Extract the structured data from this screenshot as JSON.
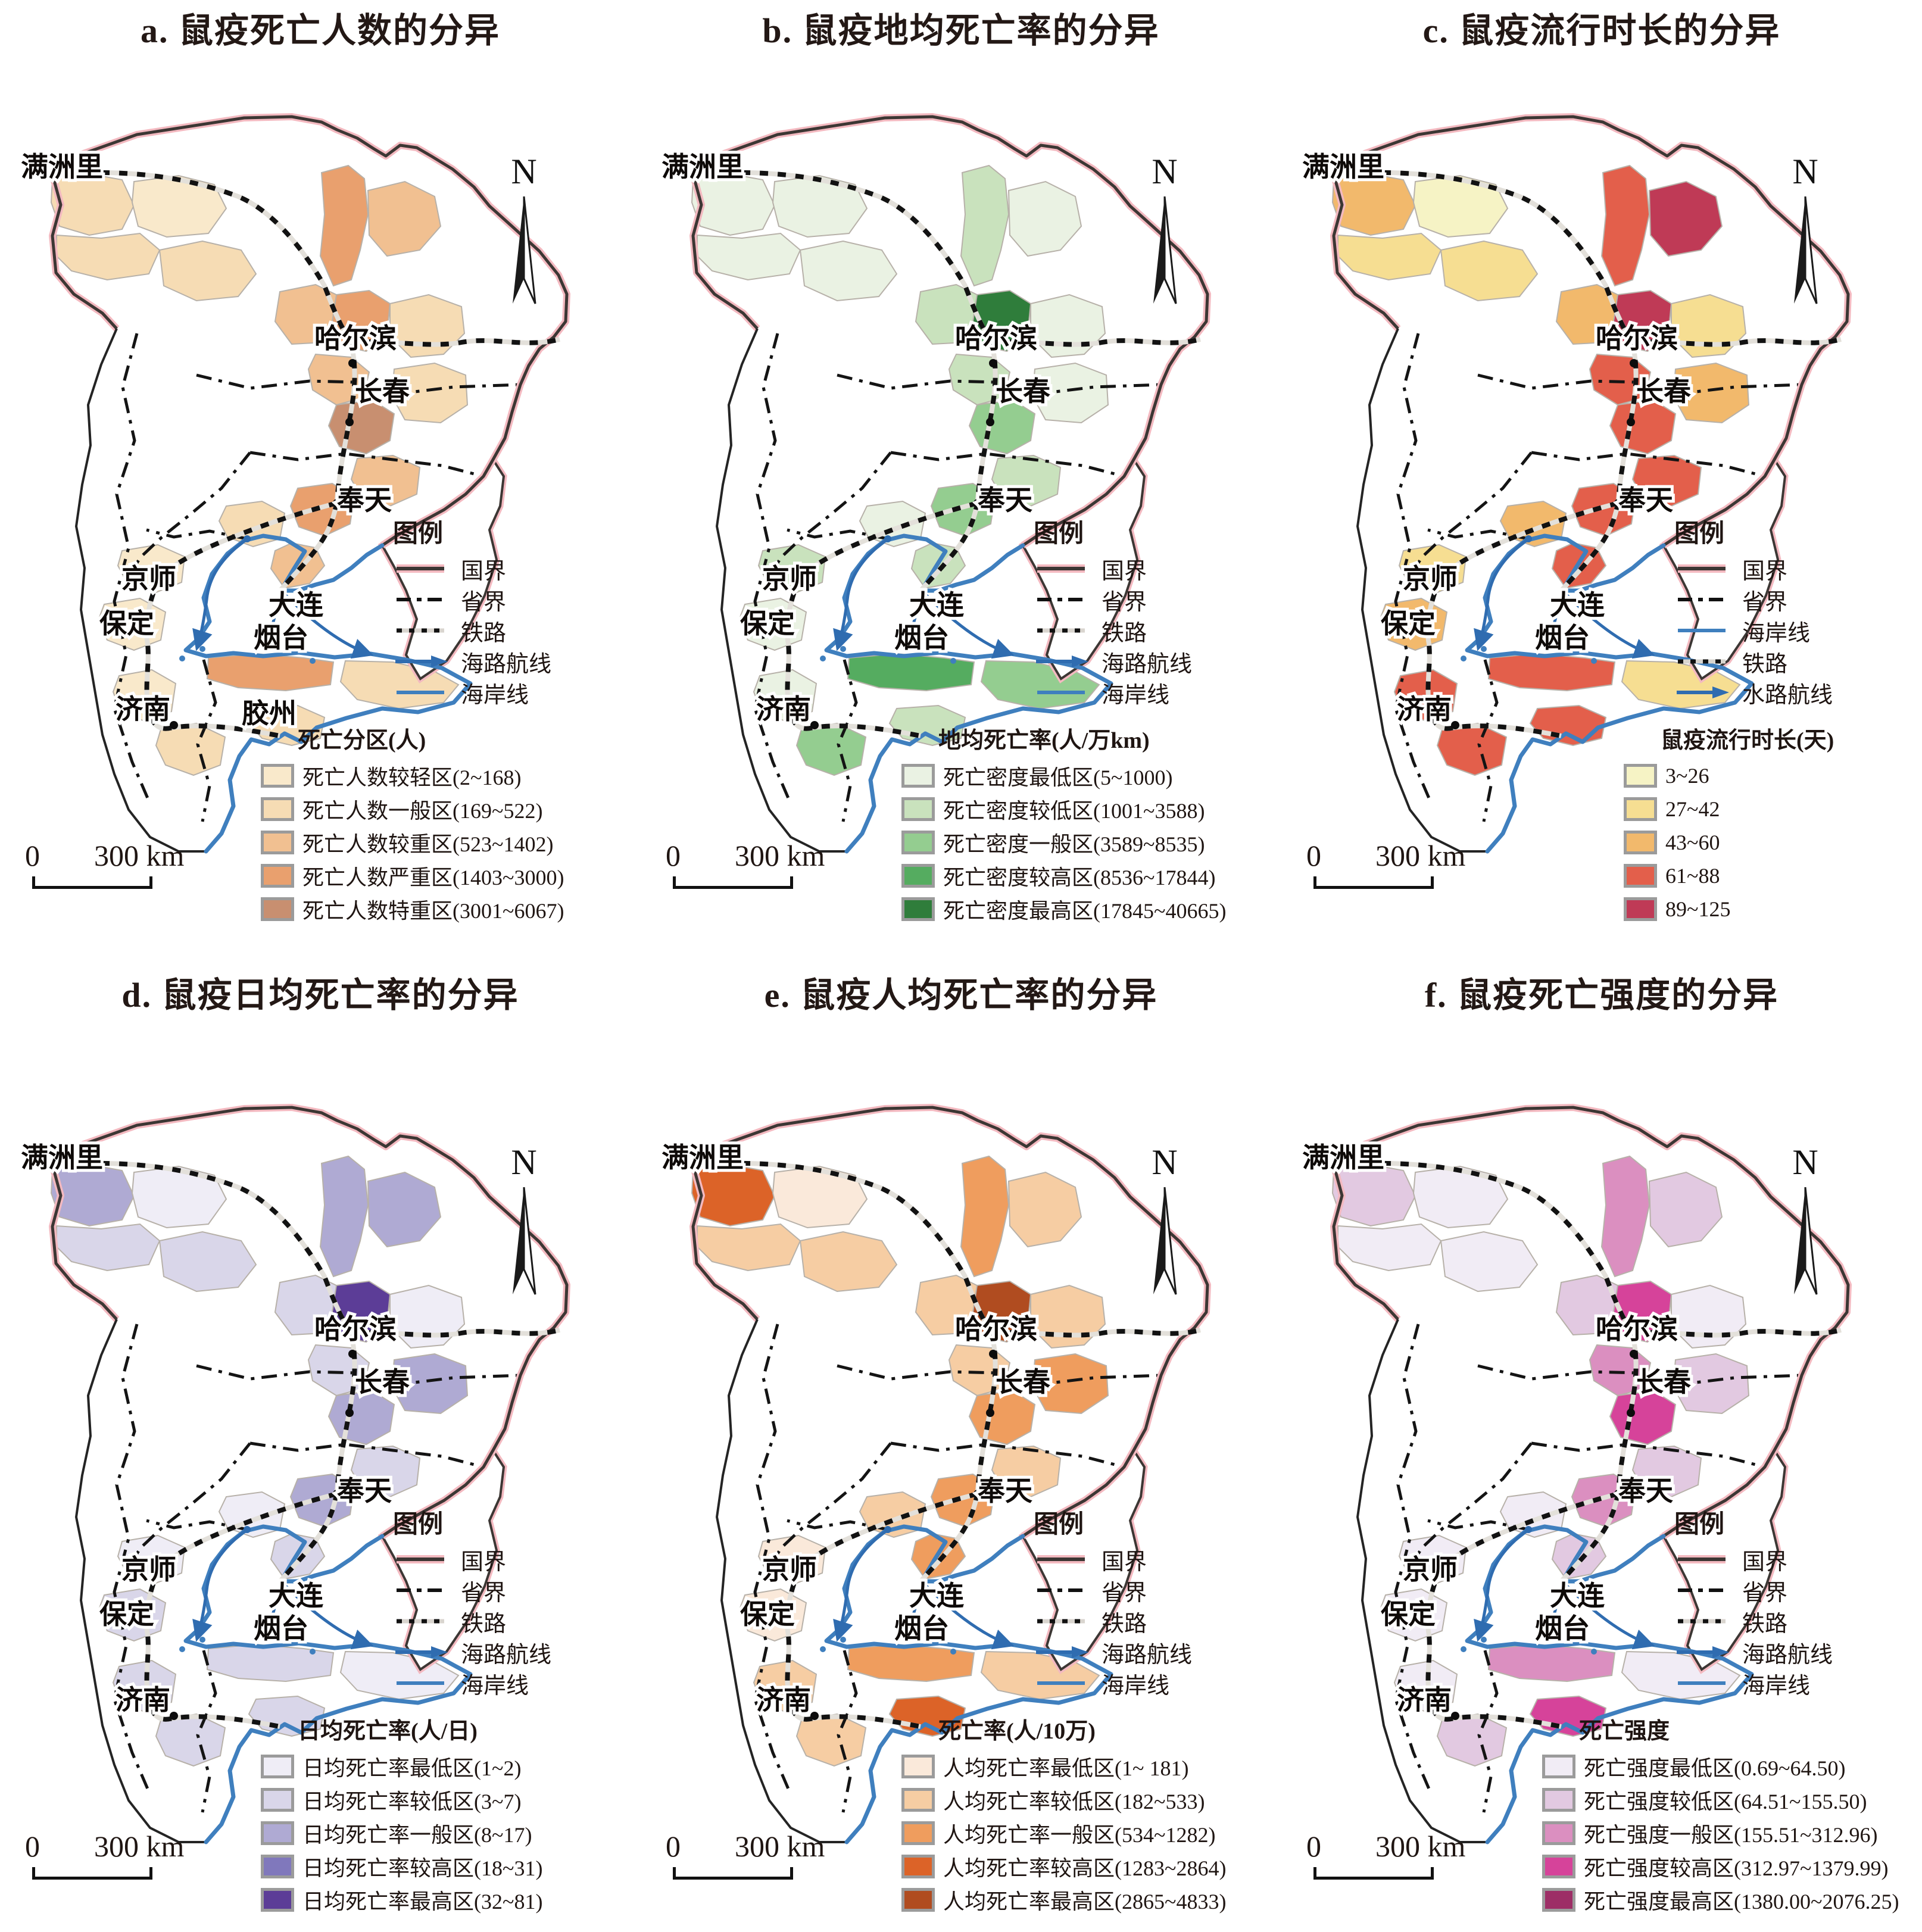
{
  "figure": {
    "panels": [
      {
        "id": "a",
        "title": "a. 鼠疫死亡人数的分异",
        "north_label": "N",
        "line_legend": {
          "title": "图例",
          "items": [
            {
              "label": "国界",
              "type": "national"
            },
            {
              "label": "省界",
              "type": "province"
            },
            {
              "label": "铁路",
              "type": "railway"
            },
            {
              "label": "海路航线",
              "type": "searoute"
            },
            {
              "label": "海岸线",
              "type": "coast"
            }
          ]
        },
        "color_legend": {
          "title": "死亡分区(人)",
          "items": [
            {
              "label": "死亡人数较轻区(2~168)",
              "color": "#F9E9CB"
            },
            {
              "label": "死亡人数一般区(169~522)",
              "color": "#F6DCB4"
            },
            {
              "label": "死亡人数较重区(523~1402)",
              "color": "#F1C091"
            },
            {
              "label": "死亡人数严重区(1403~3000)",
              "color": "#E9A06E"
            },
            {
              "label": "死亡人数特重区(3001~6067)",
              "color": "#C88F70"
            }
          ]
        },
        "scalebar": {
          "start": "0",
          "end": "300 km"
        },
        "cities": [
          "满洲里",
          "哈尔滨",
          "长春",
          "奉天",
          "京师",
          "保定",
          "济南",
          "大连",
          "烟台",
          "胶州"
        ],
        "region_classes": [
          1,
          1,
          0,
          1,
          3,
          2,
          2,
          3,
          1,
          2,
          4,
          1,
          2,
          3,
          2,
          1,
          0,
          0,
          0,
          1,
          3,
          1,
          1
        ]
      },
      {
        "id": "b",
        "title": "b. 鼠疫地均死亡率的分异",
        "north_label": "N",
        "line_legend": {
          "title": "图例",
          "items": [
            {
              "label": "国界",
              "type": "national"
            },
            {
              "label": "省界",
              "type": "province"
            },
            {
              "label": "铁路",
              "type": "railway"
            },
            {
              "label": "海路航线",
              "type": "searoute"
            },
            {
              "label": "海岸线",
              "type": "coast"
            }
          ]
        },
        "color_legend": {
          "title": "地均死亡率(人/万km)",
          "items": [
            {
              "label": "死亡密度最低区(5~1000)",
              "color": "#EAF2E3"
            },
            {
              "label": "死亡密度较低区(1001~3588)",
              "color": "#C9E2BD"
            },
            {
              "label": "死亡密度一般区(3589~8535)",
              "color": "#94CD90"
            },
            {
              "label": "死亡密度较高区(8536~17844)",
              "color": "#55AC60"
            },
            {
              "label": "死亡密度最高区(17845~40665)",
              "color": "#2F7D3B"
            }
          ]
        },
        "scalebar": {
          "start": "0",
          "end": "300 km"
        },
        "cities": [
          "满洲里",
          "哈尔滨",
          "长春",
          "奉天",
          "京师",
          "保定",
          "济南",
          "大连",
          "烟台"
        ],
        "region_classes": [
          0,
          0,
          0,
          0,
          1,
          0,
          1,
          4,
          0,
          1,
          2,
          0,
          1,
          2,
          1,
          0,
          1,
          0,
          0,
          2,
          3,
          2,
          1
        ]
      },
      {
        "id": "c",
        "title": "c. 鼠疫流行时长的分异",
        "north_label": "N",
        "line_legend": {
          "title": "图例",
          "items": [
            {
              "label": "国界",
              "type": "national"
            },
            {
              "label": "省界",
              "type": "province"
            },
            {
              "label": "海岸线",
              "type": "coast"
            },
            {
              "label": "铁路",
              "type": "railway"
            },
            {
              "label": "水路航线",
              "type": "searoute"
            }
          ]
        },
        "color_legend": {
          "title": "鼠疫流行时长(天)",
          "items": [
            {
              "label": "3~26",
              "color": "#F6F3C5"
            },
            {
              "label": "27~42",
              "color": "#F6DE92"
            },
            {
              "label": "43~60",
              "color": "#F2B96C"
            },
            {
              "label": "61~88",
              "color": "#E35F4B"
            },
            {
              "label": "89~125",
              "color": "#BF3A56"
            }
          ]
        },
        "scalebar": {
          "start": "0",
          "end": "300 km"
        },
        "cities": [
          "满洲里",
          "哈尔滨",
          "长春",
          "奉天",
          "京师",
          "保定",
          "济南",
          "大连",
          "烟台"
        ],
        "region_classes": [
          2,
          1,
          0,
          1,
          3,
          4,
          2,
          4,
          1,
          3,
          3,
          2,
          3,
          3,
          3,
          2,
          1,
          2,
          3,
          3,
          3,
          1,
          3
        ]
      },
      {
        "id": "d",
        "title": "d. 鼠疫日均死亡率的分异",
        "north_label": "N",
        "line_legend": {
          "title": "图例",
          "items": [
            {
              "label": "国界",
              "type": "national"
            },
            {
              "label": "省界",
              "type": "province"
            },
            {
              "label": "铁路",
              "type": "railway"
            },
            {
              "label": "海路航线",
              "type": "searoute"
            },
            {
              "label": "海岸线",
              "type": "coast"
            }
          ]
        },
        "color_legend": {
          "title": "日均死亡率(人/日)",
          "items": [
            {
              "label": "日均死亡率最低区(1~2)",
              "color": "#EFEDF6"
            },
            {
              "label": "日均死亡率较低区(3~7)",
              "color": "#D9D6E9"
            },
            {
              "label": "日均死亡率一般区(8~17)",
              "color": "#AFAAD3"
            },
            {
              "label": "日均死亡率较高区(18~31)",
              "color": "#8078BC"
            },
            {
              "label": "日均死亡率最高区(32~81)",
              "color": "#5C3D97"
            }
          ]
        },
        "scalebar": {
          "start": "0",
          "end": "300 km"
        },
        "cities": [
          "满洲里",
          "哈尔滨",
          "长春",
          "奉天",
          "京师",
          "保定",
          "济南",
          "大连",
          "烟台"
        ],
        "region_classes": [
          2,
          1,
          0,
          1,
          2,
          2,
          1,
          4,
          0,
          1,
          2,
          2,
          1,
          2,
          1,
          0,
          0,
          1,
          1,
          1,
          1,
          0,
          1
        ]
      },
      {
        "id": "e",
        "title": "e. 鼠疫人均死亡率的分异",
        "north_label": "N",
        "line_legend": {
          "title": "图例",
          "items": [
            {
              "label": "国界",
              "type": "national"
            },
            {
              "label": "省界",
              "type": "province"
            },
            {
              "label": "铁路",
              "type": "railway"
            },
            {
              "label": "海路航线",
              "type": "searoute"
            },
            {
              "label": "海岸线",
              "type": "coast"
            }
          ]
        },
        "color_legend": {
          "title": "死亡率(人/10万)",
          "items": [
            {
              "label": "人均死亡率最低区(1~ 181)",
              "color": "#FAE9DA"
            },
            {
              "label": "人均死亡率较低区(182~533)",
              "color": "#F6CDA3"
            },
            {
              "label": "人均死亡率一般区(534~1282)",
              "color": "#EF9D5E"
            },
            {
              "label": "人均死亡率较高区(1283~2864)",
              "color": "#DC6328"
            },
            {
              "label": "人均死亡率最高区(2865~4833)",
              "color": "#B04C20"
            }
          ]
        },
        "scalebar": {
          "start": "0",
          "end": "300 km"
        },
        "cities": [
          "满洲里",
          "哈尔滨",
          "长春",
          "奉天",
          "京师",
          "保定",
          "济南",
          "大连",
          "烟台"
        ],
        "region_classes": [
          3,
          1,
          0,
          1,
          2,
          1,
          1,
          4,
          1,
          1,
          2,
          2,
          1,
          2,
          2,
          1,
          0,
          0,
          1,
          1,
          2,
          1,
          3
        ]
      },
      {
        "id": "f",
        "title": "f. 鼠疫死亡强度的分异",
        "north_label": "N",
        "line_legend": {
          "title": "图例",
          "items": [
            {
              "label": "国界",
              "type": "national"
            },
            {
              "label": "省界",
              "type": "province"
            },
            {
              "label": "铁路",
              "type": "railway"
            },
            {
              "label": "海路航线",
              "type": "searoute"
            },
            {
              "label": "海岸线",
              "type": "coast"
            }
          ]
        },
        "color_legend": {
          "title": "死亡强度",
          "items": [
            {
              "label": "死亡强度最低区(0.69~64.50)",
              "color": "#F1ECF5"
            },
            {
              "label": "死亡强度较低区(64.51~155.50)",
              "color": "#E2C9E1"
            },
            {
              "label": "死亡强度一般区(155.51~312.96)",
              "color": "#DB8FC0"
            },
            {
              "label": "死亡强度较高区(312.97~1379.99)",
              "color": "#D6439A"
            },
            {
              "label": "死亡强度最高区(1380.00~2076.25)",
              "color": "#9D2E66"
            }
          ]
        },
        "scalebar": {
          "start": "0",
          "end": "300 km"
        },
        "cities": [
          "满洲里",
          "哈尔滨",
          "长春",
          "奉天",
          "京师",
          "保定",
          "济南",
          "大连",
          "烟台"
        ],
        "region_classes": [
          1,
          0,
          0,
          0,
          2,
          1,
          1,
          3,
          0,
          2,
          3,
          1,
          1,
          2,
          1,
          0,
          0,
          0,
          0,
          1,
          2,
          0,
          3
        ]
      }
    ]
  }
}
